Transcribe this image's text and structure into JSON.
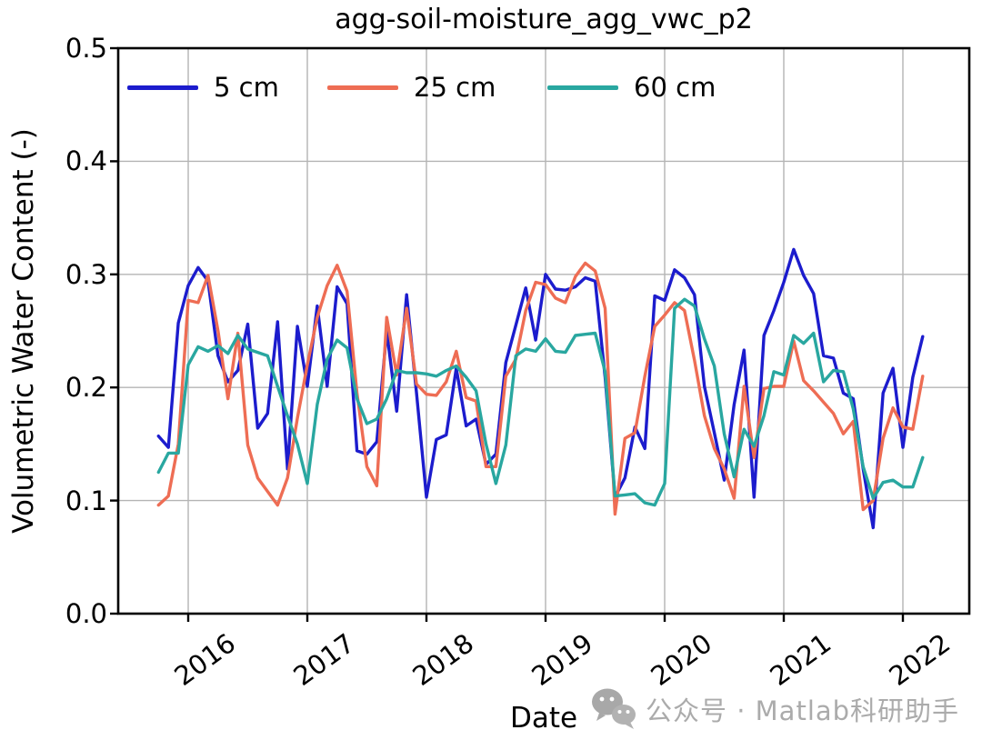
{
  "page": {
    "background": "#ffffff"
  },
  "chart_data": {
    "type": "line",
    "title": "agg-soil-moisture_agg_vwc_p2",
    "xlabel": "Date",
    "ylabel": "Volumetric Water Content (-)",
    "ylim": [
      0.0,
      0.5
    ],
    "ytick_labels": [
      "0.0",
      "0.1",
      "0.2",
      "0.3",
      "0.4",
      "0.5"
    ],
    "xtick_labels": [
      "2016",
      "2017",
      "2018",
      "2019",
      "2020",
      "2021",
      "2022"
    ],
    "grid": true,
    "grid_color": "#b4b4b4",
    "axis_color": "#000000",
    "legend_position": "upper-left-inside-no-frame",
    "x_monthly_start": "2015-10",
    "x_monthly_end": "2022-03",
    "x_points": 78,
    "series": [
      {
        "name": "5 cm",
        "color": "#1c1ccd",
        "values": [
          0.157,
          0.147,
          0.257,
          0.29,
          0.306,
          0.294,
          0.228,
          0.205,
          0.215,
          0.256,
          0.164,
          0.177,
          0.258,
          0.128,
          0.254,
          0.201,
          0.272,
          0.201,
          0.289,
          0.274,
          0.144,
          0.141,
          0.152,
          0.25,
          0.179,
          0.282,
          0.195,
          0.103,
          0.154,
          0.158,
          0.217,
          0.166,
          0.172,
          0.132,
          0.141,
          0.222,
          0.255,
          0.288,
          0.242,
          0.3,
          0.287,
          0.286,
          0.289,
          0.297,
          0.294,
          0.209,
          0.103,
          0.12,
          0.165,
          0.146,
          0.281,
          0.277,
          0.304,
          0.297,
          0.282,
          0.201,
          0.16,
          0.118,
          0.185,
          0.233,
          0.103,
          0.246,
          0.268,
          0.293,
          0.322,
          0.299,
          0.283,
          0.228,
          0.226,
          0.195,
          0.19,
          0.128,
          0.076,
          0.195,
          0.217,
          0.147,
          0.209,
          0.245
        ]
      },
      {
        "name": "25 cm",
        "color": "#ee6d54",
        "values": [
          0.096,
          0.104,
          0.15,
          0.277,
          0.275,
          0.299,
          0.25,
          0.19,
          0.248,
          0.149,
          0.12,
          0.108,
          0.096,
          0.12,
          0.173,
          0.22,
          0.262,
          0.29,
          0.308,
          0.285,
          0.195,
          0.13,
          0.113,
          0.262,
          0.211,
          0.27,
          0.203,
          0.194,
          0.193,
          0.205,
          0.232,
          0.191,
          0.188,
          0.13,
          0.13,
          0.21,
          0.225,
          0.268,
          0.293,
          0.291,
          0.279,
          0.275,
          0.298,
          0.31,
          0.303,
          0.27,
          0.088,
          0.155,
          0.16,
          0.21,
          0.254,
          0.264,
          0.275,
          0.268,
          0.224,
          0.175,
          0.146,
          0.128,
          0.102,
          0.201,
          0.138,
          0.199,
          0.201,
          0.201,
          0.241,
          0.206,
          0.197,
          0.187,
          0.177,
          0.159,
          0.17,
          0.092,
          0.1,
          0.155,
          0.182,
          0.165,
          0.163,
          0.21
        ]
      },
      {
        "name": "60 cm",
        "color": "#29a7a0",
        "values": [
          0.125,
          0.142,
          0.142,
          0.22,
          0.236,
          0.232,
          0.237,
          0.23,
          0.246,
          0.234,
          0.231,
          0.228,
          0.201,
          0.175,
          0.15,
          0.115,
          0.185,
          0.225,
          0.242,
          0.235,
          0.19,
          0.168,
          0.172,
          0.19,
          0.215,
          0.213,
          0.213,
          0.212,
          0.21,
          0.215,
          0.219,
          0.209,
          0.197,
          0.15,
          0.115,
          0.149,
          0.228,
          0.234,
          0.232,
          0.243,
          0.232,
          0.231,
          0.246,
          0.247,
          0.248,
          0.214,
          0.104,
          0.105,
          0.106,
          0.098,
          0.096,
          0.115,
          0.27,
          0.278,
          0.272,
          0.243,
          0.219,
          0.159,
          0.121,
          0.163,
          0.148,
          0.175,
          0.214,
          0.211,
          0.246,
          0.239,
          0.248,
          0.205,
          0.215,
          0.214,
          0.181,
          0.13,
          0.102,
          0.116,
          0.118,
          0.112,
          0.112,
          0.138
        ]
      }
    ]
  },
  "watermark": {
    "text": "公众号 · Matlab科研助手",
    "icon": "wechat-icon",
    "color": "#ababab"
  }
}
